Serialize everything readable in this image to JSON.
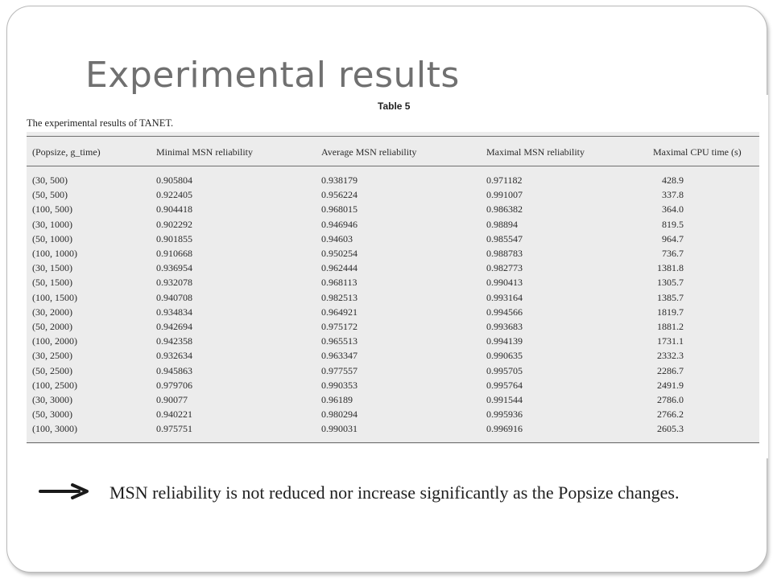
{
  "slide": {
    "title": "Experimental results"
  },
  "table": {
    "label": "Table 5",
    "caption": "The experimental results of TANET.",
    "columns": [
      "(Popsize, g_time)",
      "Minimal MSN reliability",
      "Average MSN reliability",
      "Maximal MSN reliability",
      "Maximal CPU time (s)"
    ],
    "rows": [
      [
        "(30, 500)",
        "0.905804",
        "0.938179",
        "0.971182",
        "428.9"
      ],
      [
        "(50, 500)",
        "0.922405",
        "0.956224",
        "0.991007",
        "337.8"
      ],
      [
        "(100, 500)",
        "0.904418",
        "0.968015",
        "0.986382",
        "364.0"
      ],
      [
        "(30, 1000)",
        "0.902292",
        "0.946946",
        "0.98894",
        "819.5"
      ],
      [
        "(50, 1000)",
        "0.901855",
        "0.94603",
        "0.985547",
        "964.7"
      ],
      [
        "(100, 1000)",
        "0.910668",
        "0.950254",
        "0.988783",
        "736.7"
      ],
      [
        "(30, 1500)",
        "0.936954",
        "0.962444",
        "0.982773",
        "1381.8"
      ],
      [
        "(50, 1500)",
        "0.932078",
        "0.968113",
        "0.990413",
        "1305.7"
      ],
      [
        "(100, 1500)",
        "0.940708",
        "0.982513",
        "0.993164",
        "1385.7"
      ],
      [
        "(30, 2000)",
        "0.934834",
        "0.964921",
        "0.994566",
        "1819.7"
      ],
      [
        "(50, 2000)",
        "0.942694",
        "0.975172",
        "0.993683",
        "1881.2"
      ],
      [
        "(100, 2000)",
        "0.942358",
        "0.965513",
        "0.994139",
        "1731.1"
      ],
      [
        "(30, 2500)",
        "0.932634",
        "0.963347",
        "0.990635",
        "2332.3"
      ],
      [
        "(50, 2500)",
        "0.945863",
        "0.977557",
        "0.995705",
        "2286.7"
      ],
      [
        "(100, 2500)",
        "0.979706",
        "0.990353",
        "0.995764",
        "2491.9"
      ],
      [
        "(30, 3000)",
        "0.90077",
        "0.96189",
        "0.991544",
        "2786.0"
      ],
      [
        "(50, 3000)",
        "0.940221",
        "0.980294",
        "0.995936",
        "2766.2"
      ],
      [
        "(100, 3000)",
        "0.975751",
        "0.990031",
        "0.996916",
        "2605.3"
      ]
    ]
  },
  "note": {
    "icon": "arrow-right-icon",
    "text": "MSN reliability is not reduced nor increase significantly as the Popsize changes."
  }
}
